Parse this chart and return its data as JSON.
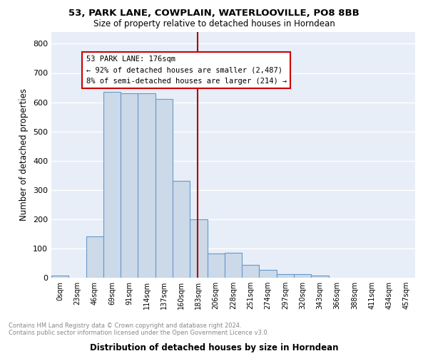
{
  "title1": "53, PARK LANE, COWPLAIN, WATERLOOVILLE, PO8 8BB",
  "title2": "Size of property relative to detached houses in Horndean",
  "xlabel": "Distribution of detached houses by size in Horndean",
  "ylabel": "Number of detached properties",
  "bin_labels": [
    "0sqm",
    "23sqm",
    "46sqm",
    "69sqm",
    "91sqm",
    "114sqm",
    "137sqm",
    "160sqm",
    "183sqm",
    "206sqm",
    "228sqm",
    "251sqm",
    "274sqm",
    "297sqm",
    "320sqm",
    "343sqm",
    "366sqm",
    "388sqm",
    "411sqm",
    "434sqm",
    "457sqm"
  ],
  "bar_values": [
    8,
    0,
    142,
    635,
    630,
    630,
    610,
    330,
    200,
    82,
    85,
    43,
    28,
    13,
    13,
    8,
    0,
    0,
    0,
    0,
    0
  ],
  "bar_color": "#ccd9e8",
  "bar_edge_color": "#6699cc",
  "vline_x_bin": 7.96,
  "vline_color": "#aa0000",
  "annotation_text": "53 PARK LANE: 176sqm\n← 92% of detached houses are smaller (2,487)\n8% of semi-detached houses are larger (214) →",
  "annotation_box_color": "#ffffff",
  "annotation_box_edge": "#cc0000",
  "ylim": [
    0,
    840
  ],
  "yticks": [
    0,
    100,
    200,
    300,
    400,
    500,
    600,
    700,
    800
  ],
  "footer_text": "Contains HM Land Registry data © Crown copyright and database right 2024.\nContains public sector information licensed under the Open Government Licence v3.0.",
  "bg_color": "#e8eef8",
  "grid_color": "#ffffff",
  "n_bins": 21
}
